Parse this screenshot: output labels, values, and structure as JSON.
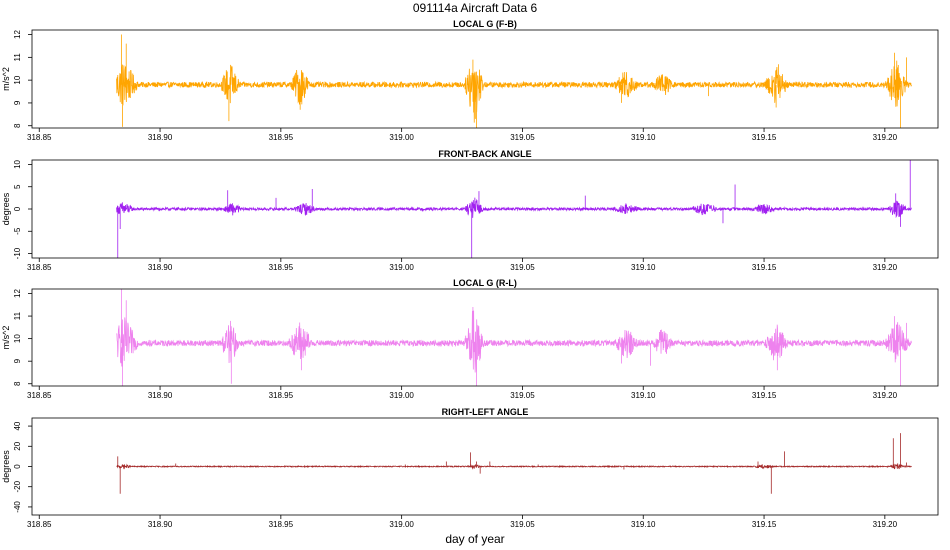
{
  "figure": {
    "title": "091114a    Aircraft Data 6",
    "xlabel": "day of year"
  },
  "chart_data": [
    {
      "type": "line",
      "title": "LOCAL G (F-B)",
      "ylabel": "m/s^2",
      "xlim": [
        318.847,
        319.222
      ],
      "ylim": [
        7.9,
        12.2
      ],
      "xticks": [
        318.85,
        318.9,
        318.95,
        319.0,
        319.05,
        319.1,
        319.15,
        319.2
      ],
      "xtick_labels": [
        "318.85",
        "318.90",
        "318.95",
        "319.00",
        "319.05",
        "319.10",
        "319.15",
        "319.20"
      ],
      "yticks": [
        8,
        9,
        10,
        11,
        12
      ],
      "ytick_labels": [
        "8",
        "9",
        "10",
        "11",
        "12"
      ],
      "color": "#ffa500",
      "baseline": 9.8,
      "noise": 0.12,
      "x_start": 318.882,
      "x_end": 319.211,
      "bursts": [
        [
          318.885,
          0.006,
          1.0
        ],
        [
          318.929,
          0.004,
          0.9
        ],
        [
          318.958,
          0.004,
          0.9
        ],
        [
          319.03,
          0.004,
          1.6
        ],
        [
          319.093,
          0.005,
          0.6
        ],
        [
          319.108,
          0.004,
          0.5
        ],
        [
          319.155,
          0.005,
          0.8
        ],
        [
          319.205,
          0.005,
          1.0
        ]
      ],
      "spikes": [
        [
          318.884,
          12.0
        ],
        [
          318.8845,
          7.95
        ],
        [
          318.886,
          11.6
        ],
        [
          318.9285,
          8.2
        ],
        [
          318.958,
          8.7
        ],
        [
          319.0295,
          10.9
        ],
        [
          319.031,
          7.9
        ],
        [
          319.0305,
          8.3
        ],
        [
          319.091,
          9.0
        ],
        [
          319.127,
          9.3
        ],
        [
          319.155,
          8.8
        ],
        [
          319.156,
          10.7
        ],
        [
          319.204,
          11.2
        ],
        [
          319.2065,
          7.9
        ],
        [
          319.209,
          11.0
        ]
      ]
    },
    {
      "type": "line",
      "title": "FRONT-BACK ANGLE",
      "ylabel": "degrees",
      "xlim": [
        318.847,
        319.222
      ],
      "ylim": [
        -11,
        11
      ],
      "xticks": [
        318.85,
        318.9,
        318.95,
        319.0,
        319.05,
        319.1,
        319.15,
        319.2
      ],
      "xtick_labels": [
        "318.85",
        "318.90",
        "318.95",
        "319.00",
        "319.05",
        "319.10",
        "319.15",
        "319.20"
      ],
      "yticks": [
        -10,
        -5,
        0,
        5,
        10
      ],
      "ytick_labels": [
        "-10",
        "-5",
        "0",
        "5",
        "10"
      ],
      "color": "#a020f0",
      "baseline": 0,
      "noise": 0.3,
      "x_start": 318.882,
      "x_end": 319.211,
      "bursts": [
        [
          318.885,
          0.004,
          1.6
        ],
        [
          318.93,
          0.004,
          1.2
        ],
        [
          318.96,
          0.005,
          1.2
        ],
        [
          319.03,
          0.004,
          2.5
        ],
        [
          319.093,
          0.006,
          1.0
        ],
        [
          319.125,
          0.006,
          1.2
        ],
        [
          319.15,
          0.005,
          1.0
        ],
        [
          319.205,
          0.004,
          2.0
        ]
      ],
      "spikes": [
        [
          318.8825,
          -11.0
        ],
        [
          318.8835,
          -4.5
        ],
        [
          318.928,
          4.2
        ],
        [
          318.948,
          2.5
        ],
        [
          318.963,
          4.5
        ],
        [
          319.029,
          -11.0
        ],
        [
          319.032,
          4.0
        ],
        [
          319.076,
          3.0
        ],
        [
          319.133,
          -3.2
        ],
        [
          319.138,
          5.5
        ],
        [
          319.2045,
          3.5
        ],
        [
          319.2065,
          -4.0
        ],
        [
          319.2105,
          11.0
        ]
      ]
    },
    {
      "type": "line",
      "title": "LOCAL G (R-L)",
      "ylabel": "m/s^2",
      "xlim": [
        318.847,
        319.222
      ],
      "ylim": [
        7.9,
        12.2
      ],
      "xticks": [
        318.85,
        318.9,
        318.95,
        319.0,
        319.05,
        319.1,
        319.15,
        319.2
      ],
      "xtick_labels": [
        "318.85",
        "318.90",
        "318.95",
        "319.00",
        "319.05",
        "319.10",
        "319.15",
        "319.20"
      ],
      "yticks": [
        8,
        9,
        10,
        11,
        12
      ],
      "ytick_labels": [
        "8",
        "9",
        "10",
        "11",
        "12"
      ],
      "color": "#ee82ee",
      "baseline": 9.8,
      "noise": 0.13,
      "x_start": 318.882,
      "x_end": 319.211,
      "bursts": [
        [
          318.885,
          0.006,
          1.1
        ],
        [
          318.929,
          0.004,
          0.9
        ],
        [
          318.958,
          0.005,
          0.9
        ],
        [
          319.03,
          0.004,
          1.6
        ],
        [
          319.093,
          0.005,
          0.6
        ],
        [
          319.108,
          0.004,
          0.6
        ],
        [
          319.155,
          0.005,
          0.8
        ],
        [
          319.205,
          0.005,
          1.0
        ]
      ],
      "spikes": [
        [
          318.884,
          12.2
        ],
        [
          318.8845,
          7.9
        ],
        [
          318.886,
          11.7
        ],
        [
          318.9295,
          8.0
        ],
        [
          318.9585,
          8.6
        ],
        [
          319.0295,
          11.4
        ],
        [
          319.031,
          7.9
        ],
        [
          319.091,
          8.9
        ],
        [
          319.103,
          8.8
        ],
        [
          319.1555,
          8.6
        ],
        [
          319.204,
          11.0
        ],
        [
          319.2065,
          7.9
        ],
        [
          319.209,
          10.7
        ]
      ]
    },
    {
      "type": "line",
      "title": "RIGHT-LEFT ANGLE",
      "ylabel": "degrees",
      "xlim": [
        318.847,
        319.222
      ],
      "ylim": [
        -48,
        48
      ],
      "xticks": [
        318.85,
        318.9,
        318.95,
        319.0,
        319.05,
        319.1,
        319.15,
        319.2
      ],
      "xtick_labels": [
        "318.85",
        "318.90",
        "318.95",
        "319.00",
        "319.05",
        "319.10",
        "319.15",
        "319.20"
      ],
      "yticks": [
        -40,
        -20,
        0,
        20,
        40
      ],
      "ytick_labels": [
        "-40",
        "-20",
        "0",
        "20",
        "40"
      ],
      "color": "#a52a2a",
      "baseline": 0,
      "noise": 0.5,
      "x_start": 318.882,
      "x_end": 319.211,
      "bursts": [
        [
          318.885,
          0.003,
          2.0
        ],
        [
          319.03,
          0.003,
          2.0
        ],
        [
          319.15,
          0.004,
          2.0
        ],
        [
          319.205,
          0.003,
          3.0
        ]
      ],
      "spikes": [
        [
          318.8825,
          10.0
        ],
        [
          318.8835,
          -27.0
        ],
        [
          318.9065,
          3.0
        ],
        [
          319.0015,
          2.0
        ],
        [
          319.0185,
          5.0
        ],
        [
          319.0285,
          14.0
        ],
        [
          319.031,
          5.0
        ],
        [
          319.0325,
          -7.0
        ],
        [
          319.0365,
          5.0
        ],
        [
          319.0565,
          2.0
        ],
        [
          319.092,
          -3.0
        ],
        [
          319.1475,
          5.0
        ],
        [
          319.153,
          -27.0
        ],
        [
          319.1585,
          15.0
        ],
        [
          319.2035,
          28.0
        ],
        [
          319.2065,
          33.0
        ],
        [
          319.209,
          4.0
        ]
      ]
    }
  ]
}
